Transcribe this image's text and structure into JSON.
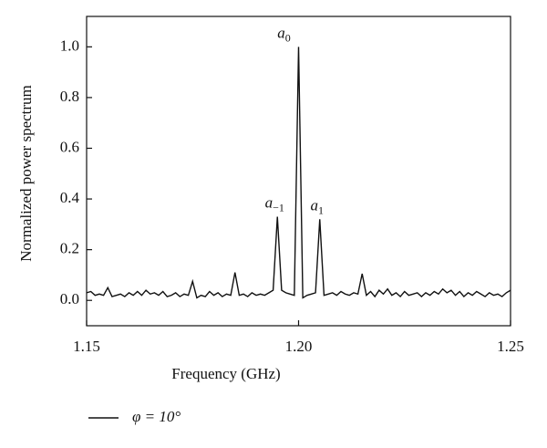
{
  "chart_data": {
    "type": "line",
    "xlabel": "Frequency (GHz)",
    "ylabel": "Normalized power spectrum",
    "xlim": [
      1.15,
      1.25
    ],
    "ylim": [
      -0.1,
      1.12
    ],
    "xticks": [
      1.15,
      {
        "value": 1.2,
        "label": "1.20"
      },
      1.25
    ],
    "yticks": [
      {
        "value": 0,
        "label": "0.0"
      },
      {
        "value": 0.2,
        "label": "0.2"
      },
      {
        "value": 0.4,
        "label": "0.4"
      },
      {
        "value": 0.6,
        "label": "0.6"
      },
      {
        "value": 0.8,
        "label": "0.8"
      },
      {
        "value": 1,
        "label": "1.0"
      }
    ],
    "x": [
      1.15,
      1.151,
      1.152,
      1.153,
      1.154,
      1.155,
      1.156,
      1.157,
      1.158,
      1.159,
      1.16,
      1.161,
      1.162,
      1.163,
      1.164,
      1.165,
      1.166,
      1.167,
      1.168,
      1.169,
      1.17,
      1.171,
      1.172,
      1.173,
      1.174,
      1.175,
      1.176,
      1.177,
      1.178,
      1.179,
      1.18,
      1.181,
      1.182,
      1.183,
      1.184,
      1.185,
      1.186,
      1.187,
      1.188,
      1.189,
      1.19,
      1.191,
      1.192,
      1.193,
      1.194,
      1.195,
      1.196,
      1.197,
      1.198,
      1.199,
      1.2,
      1.201,
      1.202,
      1.203,
      1.204,
      1.205,
      1.206,
      1.207,
      1.208,
      1.209,
      1.21,
      1.211,
      1.212,
      1.213,
      1.214,
      1.215,
      1.216,
      1.217,
      1.218,
      1.219,
      1.22,
      1.221,
      1.222,
      1.223,
      1.224,
      1.225,
      1.226,
      1.227,
      1.228,
      1.229,
      1.23,
      1.231,
      1.232,
      1.233,
      1.234,
      1.235,
      1.236,
      1.237,
      1.238,
      1.239,
      1.24,
      1.241,
      1.242,
      1.243,
      1.244,
      1.245,
      1.246,
      1.247,
      1.248,
      1.249,
      1.25
    ],
    "series": [
      {
        "name": "φ = 10°",
        "color": "#111111",
        "values": [
          0.03,
          0.035,
          0.02,
          0.025,
          0.02,
          0.05,
          0.015,
          0.02,
          0.025,
          0.015,
          0.03,
          0.02,
          0.035,
          0.02,
          0.04,
          0.025,
          0.03,
          0.02,
          0.035,
          0.015,
          0.02,
          0.03,
          0.015,
          0.025,
          0.02,
          0.075,
          0.01,
          0.02,
          0.015,
          0.035,
          0.02,
          0.03,
          0.015,
          0.025,
          0.02,
          0.11,
          0.02,
          0.025,
          0.015,
          0.03,
          0.02,
          0.025,
          0.02,
          0.03,
          0.04,
          0.33,
          0.04,
          0.03,
          0.025,
          0.02,
          1.0,
          0.01,
          0.02,
          0.025,
          0.03,
          0.32,
          0.02,
          0.025,
          0.03,
          0.02,
          0.035,
          0.025,
          0.02,
          0.03,
          0.025,
          0.105,
          0.02,
          0.035,
          0.015,
          0.04,
          0.025,
          0.045,
          0.02,
          0.03,
          0.015,
          0.035,
          0.02,
          0.025,
          0.03,
          0.015,
          0.03,
          0.02,
          0.035,
          0.025,
          0.045,
          0.03,
          0.04,
          0.02,
          0.035,
          0.015,
          0.03,
          0.02,
          0.035,
          0.025,
          0.015,
          0.03,
          0.02,
          0.025,
          0.015,
          0.03,
          0.04
        ]
      }
    ],
    "annotations": [
      {
        "text": "a",
        "subscript": "−1",
        "x": 1.195
      },
      {
        "text": "a",
        "subscript": "0",
        "x": 1.2
      },
      {
        "text": "a",
        "subscript": "1",
        "x": 1.205
      }
    ]
  }
}
